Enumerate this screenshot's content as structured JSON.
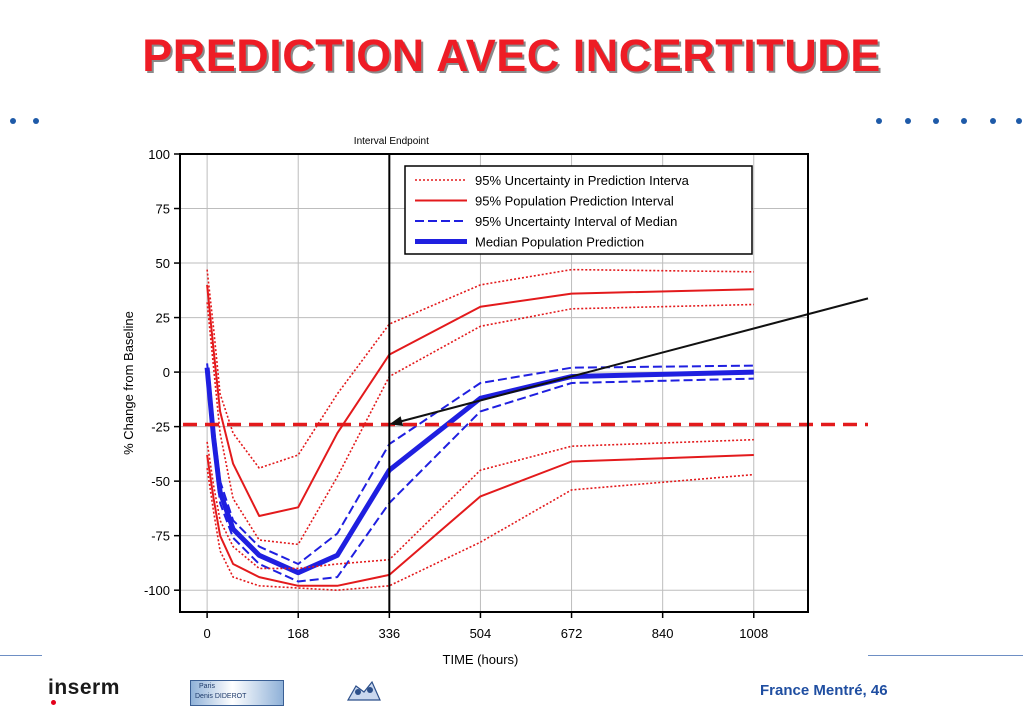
{
  "slide": {
    "title": "PREDICTION AVEC INCERTITUDE",
    "author": "France Mentré,  46",
    "accent_color": "#ee1c25",
    "dot_color": "#1e5aa8"
  },
  "logos": {
    "inserm": "inserm",
    "paris_line1": "Paris",
    "paris_line2": "Denis DIDEROT"
  },
  "chart_data": {
    "type": "line",
    "top_label": "Interval Endpoint",
    "xlabel": "TIME (hours)",
    "ylabel": "% Change from Baseline",
    "xlim": [
      -50,
      1108
    ],
    "ylim": [
      -110,
      100
    ],
    "xticks": [
      0,
      168,
      336,
      504,
      672,
      840,
      1008
    ],
    "yticks": [
      100,
      75,
      50,
      25,
      0,
      -25,
      -50,
      -75,
      -100
    ],
    "grid": true,
    "legend_position": "top-right",
    "legend": [
      {
        "label": "95% Uncertainty in Prediction Interva",
        "style": "red-dotted"
      },
      {
        "label": "95% Population Prediction Interval",
        "style": "red-solid"
      },
      {
        "label": "95% Uncertainty Interval of Median",
        "style": "blue-dashed"
      },
      {
        "label": "Median Population Prediction",
        "style": "blue-thick"
      }
    ],
    "colors": {
      "red": "#e31a1c",
      "blue": "#1f1fe0",
      "threshold": "#e31a1c",
      "arrow": "#111111"
    },
    "x": [
      0,
      12,
      24,
      48,
      96,
      168,
      240,
      336,
      504,
      672,
      1008
    ],
    "series": [
      {
        "style": "red-dotted",
        "values": [
          47,
          20,
          -10,
          -28,
          -44,
          -38,
          -10,
          22,
          40,
          47,
          46
        ]
      },
      {
        "style": "red-solid",
        "values": [
          40,
          10,
          -18,
          -42,
          -66,
          -62,
          -28,
          8,
          30,
          36,
          38
        ]
      },
      {
        "style": "red-dotted",
        "values": [
          32,
          2,
          -28,
          -58,
          -77,
          -79,
          -48,
          -2,
          21,
          29,
          31
        ]
      },
      {
        "style": "blue-dashed",
        "values": [
          4,
          -25,
          -50,
          -68,
          -80,
          -88,
          -74,
          -33,
          -5,
          2,
          3
        ]
      },
      {
        "style": "blue-thick",
        "values": [
          2,
          -30,
          -55,
          -72,
          -84,
          -92,
          -84,
          -45,
          -12,
          -2,
          0
        ]
      },
      {
        "style": "blue-dashed",
        "values": [
          0,
          -34,
          -60,
          -76,
          -88,
          -96,
          -94,
          -60,
          -18,
          -5,
          -3
        ]
      },
      {
        "style": "red-dotted",
        "values": [
          -32,
          -52,
          -68,
          -80,
          -90,
          -90,
          -88,
          -86,
          -45,
          -34,
          -31
        ]
      },
      {
        "style": "red-solid",
        "values": [
          -38,
          -58,
          -75,
          -88,
          -94,
          -98,
          -98,
          -93,
          -57,
          -41,
          -38
        ]
      },
      {
        "style": "red-dotted",
        "values": [
          -44,
          -64,
          -82,
          -94,
          -98,
          -99,
          -100,
          -98,
          -78,
          -54,
          -47
        ]
      }
    ],
    "threshold_y": -24,
    "interval_endpoint_x": 336,
    "annotation_arrow": {
      "from": [
        1008,
        20
      ],
      "to": [
        336,
        -24
      ],
      "extends_right": true
    }
  }
}
